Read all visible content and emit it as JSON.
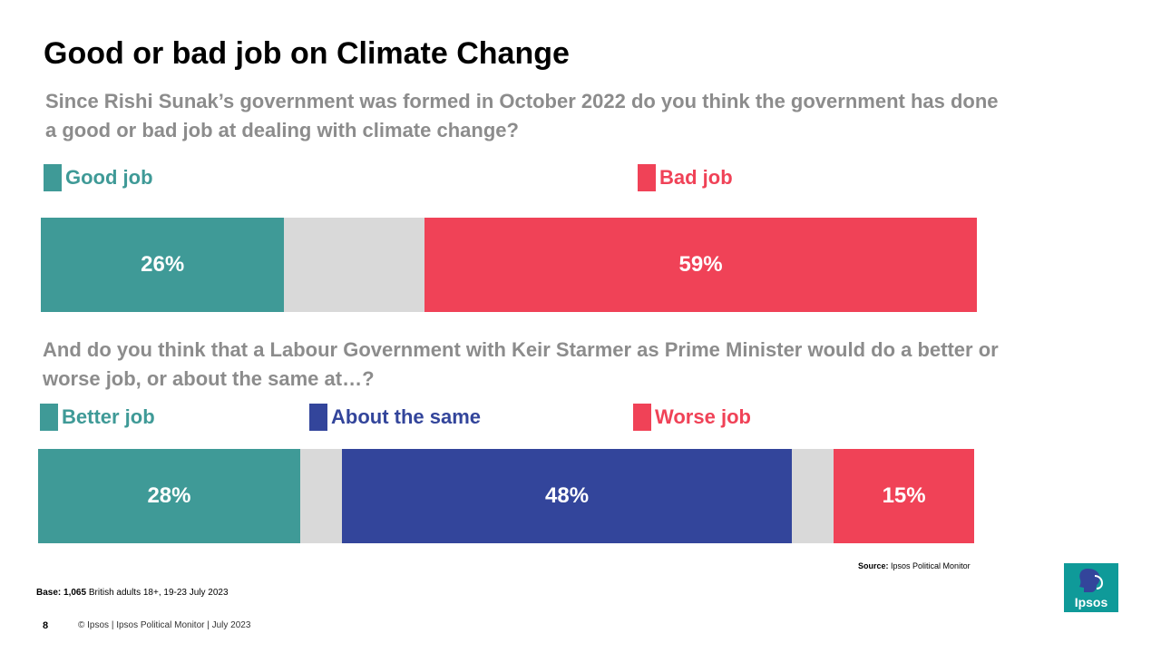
{
  "title": "Good or bad job on Climate Change",
  "question1": "Since Rishi Sunak’s government was formed in October 2022 do you think the government has done a good or bad job at dealing with climate change?",
  "question2": "And do you think that a Labour Government with Keir Starmer as Prime Minister would do a better or worse job, or about the same at…?",
  "colors": {
    "good": "#3f9a97",
    "bad": "#f04257",
    "same": "#33459b",
    "neutral": "#d9d9d9",
    "question": "#8c8c8c"
  },
  "chart_data": [
    {
      "type": "bar",
      "orientation": "horizontal-stacked",
      "title": "",
      "series": [
        {
          "name": "Good job",
          "value": 26,
          "label": "26%",
          "color": "#3f9a97"
        },
        {
          "name": "",
          "value": 15,
          "label": "",
          "color": "#d9d9d9"
        },
        {
          "name": "Bad job",
          "value": 59,
          "label": "59%",
          "color": "#f04257"
        }
      ],
      "legend": [
        "Good job",
        "Bad job"
      ]
    },
    {
      "type": "bar",
      "orientation": "horizontal-stacked",
      "title": "",
      "series": [
        {
          "name": "Better job",
          "value": 28,
          "label": "28%",
          "color": "#3f9a97"
        },
        {
          "name": "",
          "value": 4.5,
          "label": "",
          "color": "#d9d9d9"
        },
        {
          "name": "About the same",
          "value": 48,
          "label": "48%",
          "color": "#33459b"
        },
        {
          "name": "",
          "value": 4.5,
          "label": "",
          "color": "#d9d9d9"
        },
        {
          "name": "Worse job",
          "value": 15,
          "label": "15%",
          "color": "#f04257"
        }
      ],
      "legend": [
        "Better job",
        "About the same",
        "Worse job"
      ]
    }
  ],
  "source": {
    "label": "Source:",
    "text": "Ipsos  Political Monitor"
  },
  "base": {
    "label": "Base:",
    "count": "1,065",
    "text": "British adults 18+,  19-23 July 2023"
  },
  "footer": {
    "page_number": "8",
    "text": "© Ipsos | Ipsos Political Monitor | July 2023"
  },
  "logo": {
    "text": "Ipsos"
  }
}
